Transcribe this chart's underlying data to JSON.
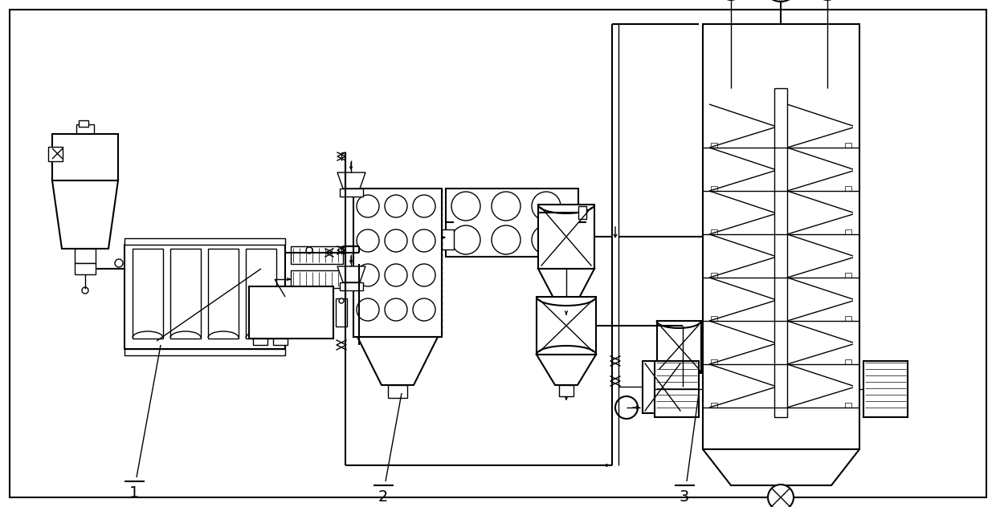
{
  "bg_color": "#ffffff",
  "line_color": "#000000",
  "label1": "1",
  "label2": "2",
  "label3": "3",
  "fig_width": 12.4,
  "fig_height": 6.32
}
